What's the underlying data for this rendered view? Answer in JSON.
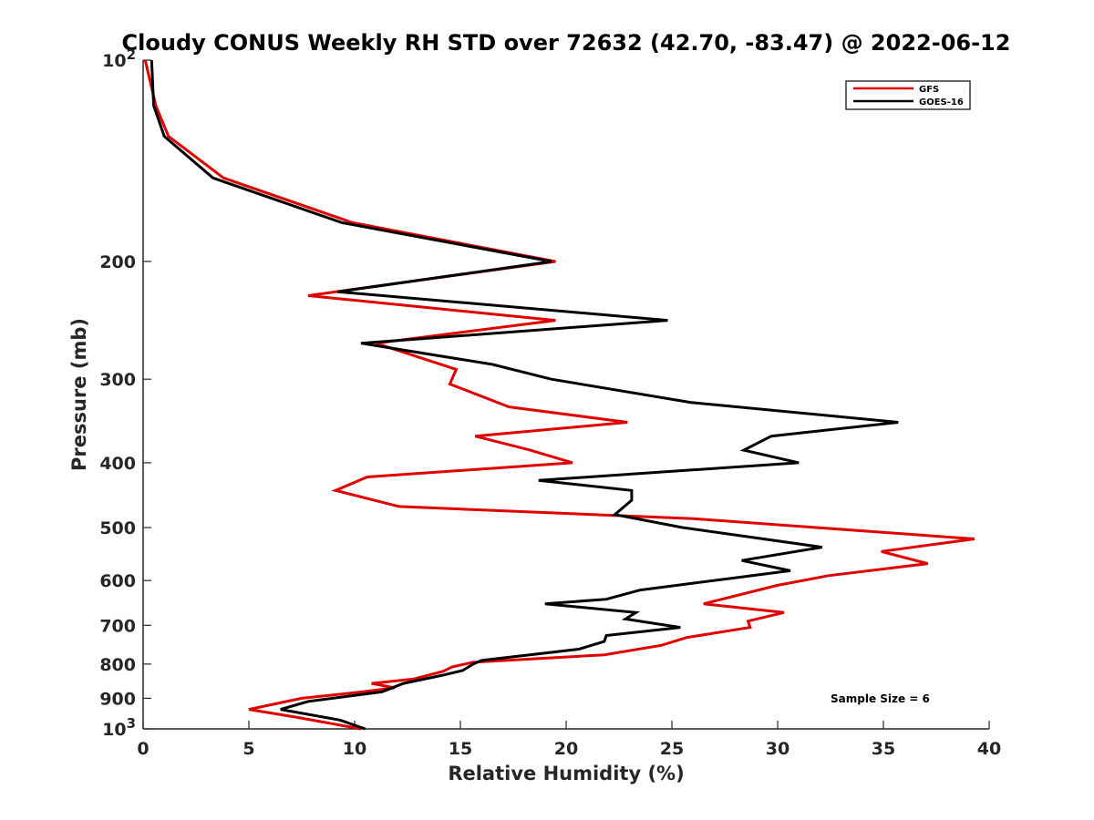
{
  "chart_data": {
    "type": "line",
    "title": "Cloudy CONUS Weekly RH STD over 72632 (42.70, -83.47) @ 2022-06-12",
    "xlabel": "Relative Humidity (%)",
    "ylabel": "Pressure (mb)",
    "xlim": [
      0,
      40
    ],
    "ylim": [
      1000,
      100
    ],
    "y_scale": "log",
    "y_reversed": true,
    "grid": false,
    "x_ticks": [
      "0",
      "5",
      "10",
      "15",
      "20",
      "25",
      "30",
      "35",
      "40"
    ],
    "y_ticks": [
      {
        "value": 100,
        "label": "10",
        "sup": "2"
      },
      {
        "value": 200,
        "label": "200"
      },
      {
        "value": 300,
        "label": "300"
      },
      {
        "value": 400,
        "label": "400"
      },
      {
        "value": 500,
        "label": "500"
      },
      {
        "value": 600,
        "label": "600"
      },
      {
        "value": 700,
        "label": "700"
      },
      {
        "value": 800,
        "label": "800"
      },
      {
        "value": 900,
        "label": "900"
      },
      {
        "value": 1000,
        "label": "10",
        "sup": "3"
      }
    ],
    "legend_position": "top-right",
    "annotation": "Sample Size = 6",
    "series": [
      {
        "name": "GFS",
        "color": "#e00000",
        "points": [
          [
            0.1,
            100
          ],
          [
            0.6,
            117
          ],
          [
            1.2,
            130
          ],
          [
            3.8,
            150
          ],
          [
            9.9,
            175
          ],
          [
            19.5,
            200
          ],
          [
            7.8,
            225
          ],
          [
            19.5,
            245
          ],
          [
            11.0,
            265
          ],
          [
            14.8,
            290
          ],
          [
            14.5,
            305
          ],
          [
            17.3,
            330
          ],
          [
            22.9,
            348
          ],
          [
            15.7,
            365
          ],
          [
            18.3,
            383
          ],
          [
            20.3,
            400
          ],
          [
            10.6,
            420
          ],
          [
            9.1,
            440
          ],
          [
            12.1,
            465
          ],
          [
            26.0,
            485
          ],
          [
            39.3,
            520
          ],
          [
            34.9,
            543
          ],
          [
            37.1,
            566
          ],
          [
            32.4,
            590
          ],
          [
            30.0,
            610
          ],
          [
            26.5,
            650
          ],
          [
            30.3,
            670
          ],
          [
            28.6,
            690
          ],
          [
            28.7,
            705
          ],
          [
            25.7,
            730
          ],
          [
            24.5,
            750
          ],
          [
            21.8,
            775
          ],
          [
            15.6,
            795
          ],
          [
            14.6,
            808
          ],
          [
            14.2,
            820
          ],
          [
            12.8,
            842
          ],
          [
            10.8,
            855
          ],
          [
            11.9,
            868
          ],
          [
            10.4,
            880
          ],
          [
            7.5,
            900
          ],
          [
            5.0,
            935
          ],
          [
            7.2,
            960
          ],
          [
            10.3,
            1000
          ]
        ]
      },
      {
        "name": "GOES-16",
        "color": "#000000",
        "points": [
          [
            0.4,
            100
          ],
          [
            0.5,
            117
          ],
          [
            1.0,
            130
          ],
          [
            3.3,
            150
          ],
          [
            9.4,
            175
          ],
          [
            19.3,
            200
          ],
          [
            9.2,
            222
          ],
          [
            24.8,
            245
          ],
          [
            10.3,
            265
          ],
          [
            16.5,
            285
          ],
          [
            19.3,
            300
          ],
          [
            25.9,
            325
          ],
          [
            35.7,
            348
          ],
          [
            29.7,
            365
          ],
          [
            28.4,
            383
          ],
          [
            31.0,
            400
          ],
          [
            18.7,
            425
          ],
          [
            23.1,
            440
          ],
          [
            23.1,
            455
          ],
          [
            22.3,
            478
          ],
          [
            25.5,
            500
          ],
          [
            32.1,
            535
          ],
          [
            28.3,
            560
          ],
          [
            30.6,
            580
          ],
          [
            23.5,
            620
          ],
          [
            21.9,
            640
          ],
          [
            19.0,
            650
          ],
          [
            23.3,
            670
          ],
          [
            22.8,
            685
          ],
          [
            25.4,
            705
          ],
          [
            21.9,
            725
          ],
          [
            21.8,
            740
          ],
          [
            20.6,
            760
          ],
          [
            16.0,
            790
          ],
          [
            15.6,
            800
          ],
          [
            15.1,
            818
          ],
          [
            14.1,
            832
          ],
          [
            12.3,
            855
          ],
          [
            11.3,
            880
          ],
          [
            7.8,
            910
          ],
          [
            6.5,
            935
          ],
          [
            9.3,
            970
          ],
          [
            10.5,
            1000
          ]
        ]
      }
    ]
  }
}
